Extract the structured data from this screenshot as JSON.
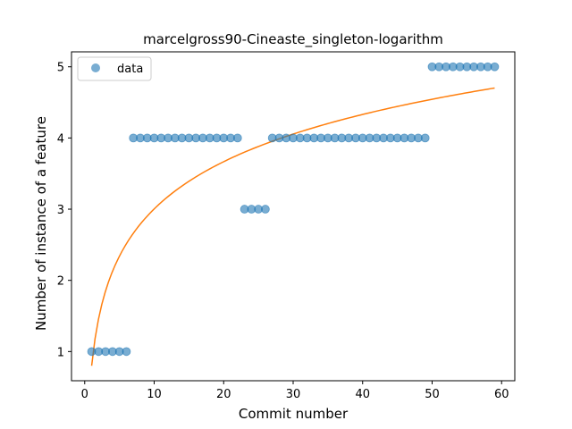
{
  "chart_data": {
    "type": "scatter",
    "title": "marcelgross90-Cineaste_singleton-logarithm",
    "xlabel": "Commit number",
    "ylabel": "Number of instance of a feature",
    "xlim": [
      -1.9,
      61.9
    ],
    "ylim": [
      0.59,
      5.21
    ],
    "xticks": [
      0,
      10,
      20,
      30,
      40,
      50,
      60
    ],
    "yticks": [
      1,
      2,
      3,
      4,
      5
    ],
    "legend": {
      "position": "top-left",
      "entries": [
        "data"
      ]
    },
    "series": [
      {
        "name": "data",
        "kind": "scatter",
        "color": "#1f77b4",
        "x": [
          1,
          2,
          3,
          4,
          5,
          6,
          7,
          8,
          9,
          10,
          11,
          12,
          13,
          14,
          15,
          16,
          17,
          18,
          19,
          20,
          21,
          22,
          23,
          24,
          25,
          26,
          27,
          28,
          29,
          30,
          31,
          32,
          33,
          34,
          35,
          36,
          37,
          38,
          39,
          40,
          41,
          42,
          43,
          44,
          45,
          46,
          47,
          48,
          49,
          50,
          51,
          52,
          53,
          54,
          55,
          56,
          57,
          58,
          59
        ],
        "y": [
          1,
          1,
          1,
          1,
          1,
          1,
          4,
          4,
          4,
          4,
          4,
          4,
          4,
          4,
          4,
          4,
          4,
          4,
          4,
          4,
          4,
          4,
          3,
          3,
          3,
          3,
          4,
          4,
          4,
          4,
          4,
          4,
          4,
          4,
          4,
          4,
          4,
          4,
          4,
          4,
          4,
          4,
          4,
          4,
          4,
          4,
          4,
          4,
          4,
          5,
          5,
          5,
          5,
          5,
          5,
          5,
          5,
          5,
          5
        ]
      },
      {
        "kind": "line",
        "color": "#ff7f0e",
        "fit": {
          "form": "a + b*ln(x)",
          "a": 0.8,
          "b": 0.957
        },
        "x_range": [
          1,
          59
        ]
      }
    ]
  }
}
